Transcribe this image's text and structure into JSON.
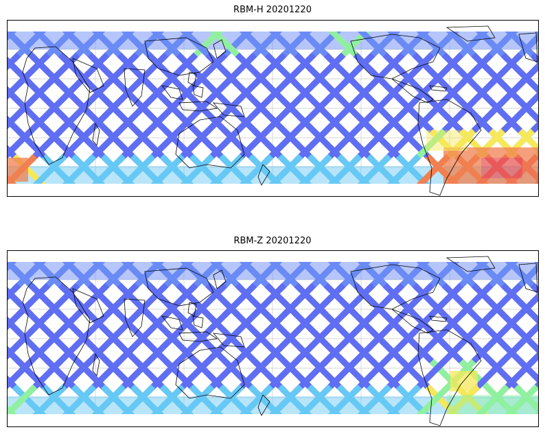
{
  "maps": [
    {
      "title": "RBM-H 20201220",
      "hot_region": "south-america-south",
      "intensity": "high"
    },
    {
      "title": "RBM-Z 20201220",
      "hot_region": "south-america-east",
      "intensity": "moderate"
    }
  ],
  "colors": {
    "low": "#5f6ef2",
    "low2": "#6a8af5",
    "mid": "#66c8f5",
    "midhigh": "#90f0a0",
    "high": "#f5e85a",
    "hot": "#f08050",
    "hotter": "#e85a5a",
    "coast": "#000000",
    "grid": "#c8c8c8"
  }
}
